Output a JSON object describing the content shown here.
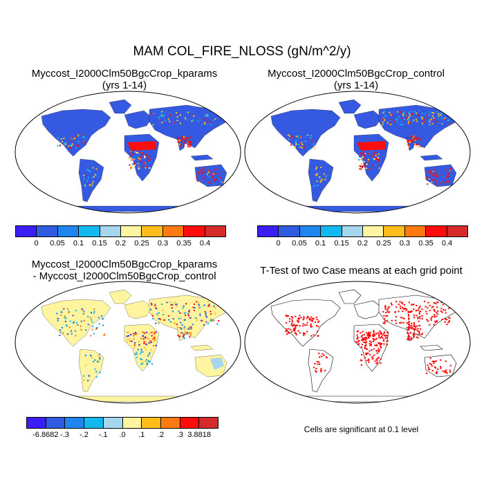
{
  "main_title": "MAM COL_FIRE_NLOSS (gN/m^2/y)",
  "panels": {
    "top_left": {
      "title_line1": "Myccost_I2000Clm50BgcCrop_kparams",
      "title_line2": "(yrs 1-14)"
    },
    "top_right": {
      "title_line1": "Myccost_I2000Clm50BgcCrop_control",
      "title_line2": "(yrs 1-14)"
    },
    "bottom_left": {
      "title_line1": "Myccost_I2000Clm50BgcCrop_kparams",
      "title_line2": "- Myccost_I2000Clm50BgcCrop_control"
    },
    "bottom_right": {
      "title_line1": "T-Test of two Case means at each grid point",
      "note": "Cells are significant at 0.1 level"
    }
  },
  "colorbars": {
    "absolute": {
      "colors": [
        "#3b1ef5",
        "#2f5be0",
        "#1f86f0",
        "#12b8ee",
        "#a6d5ee",
        "#fff4a0",
        "#ffbd19",
        "#ff7a10",
        "#ff0d0d",
        "#d42a2a"
      ],
      "labels": [
        "0",
        "0.05",
        "0.1",
        "0.15",
        "0.2",
        "0.25",
        "0.3",
        "0.35",
        "0.4"
      ]
    },
    "difference": {
      "colors": [
        "#3b1ef5",
        "#2f5be0",
        "#1f86f0",
        "#12b8ee",
        "#a6d5ee",
        "#fff4a0",
        "#ffbd19",
        "#ff7a10",
        "#ff0d0d",
        "#d42a2a"
      ],
      "labels": [
        "-6.8682",
        "-.3",
        "-.2",
        "-.1",
        ".0",
        ".1",
        ".2",
        ".3",
        "3.8818"
      ]
    }
  },
  "map_colors": {
    "ocean": "#ffffff",
    "land_low": "#3559e0",
    "fire_high": "#ff0d0d",
    "fire_mid": "#ffbd19",
    "diff_zero": "#fff4a0",
    "diff_neg": "#3559e0",
    "significant": "#ff0000"
  }
}
